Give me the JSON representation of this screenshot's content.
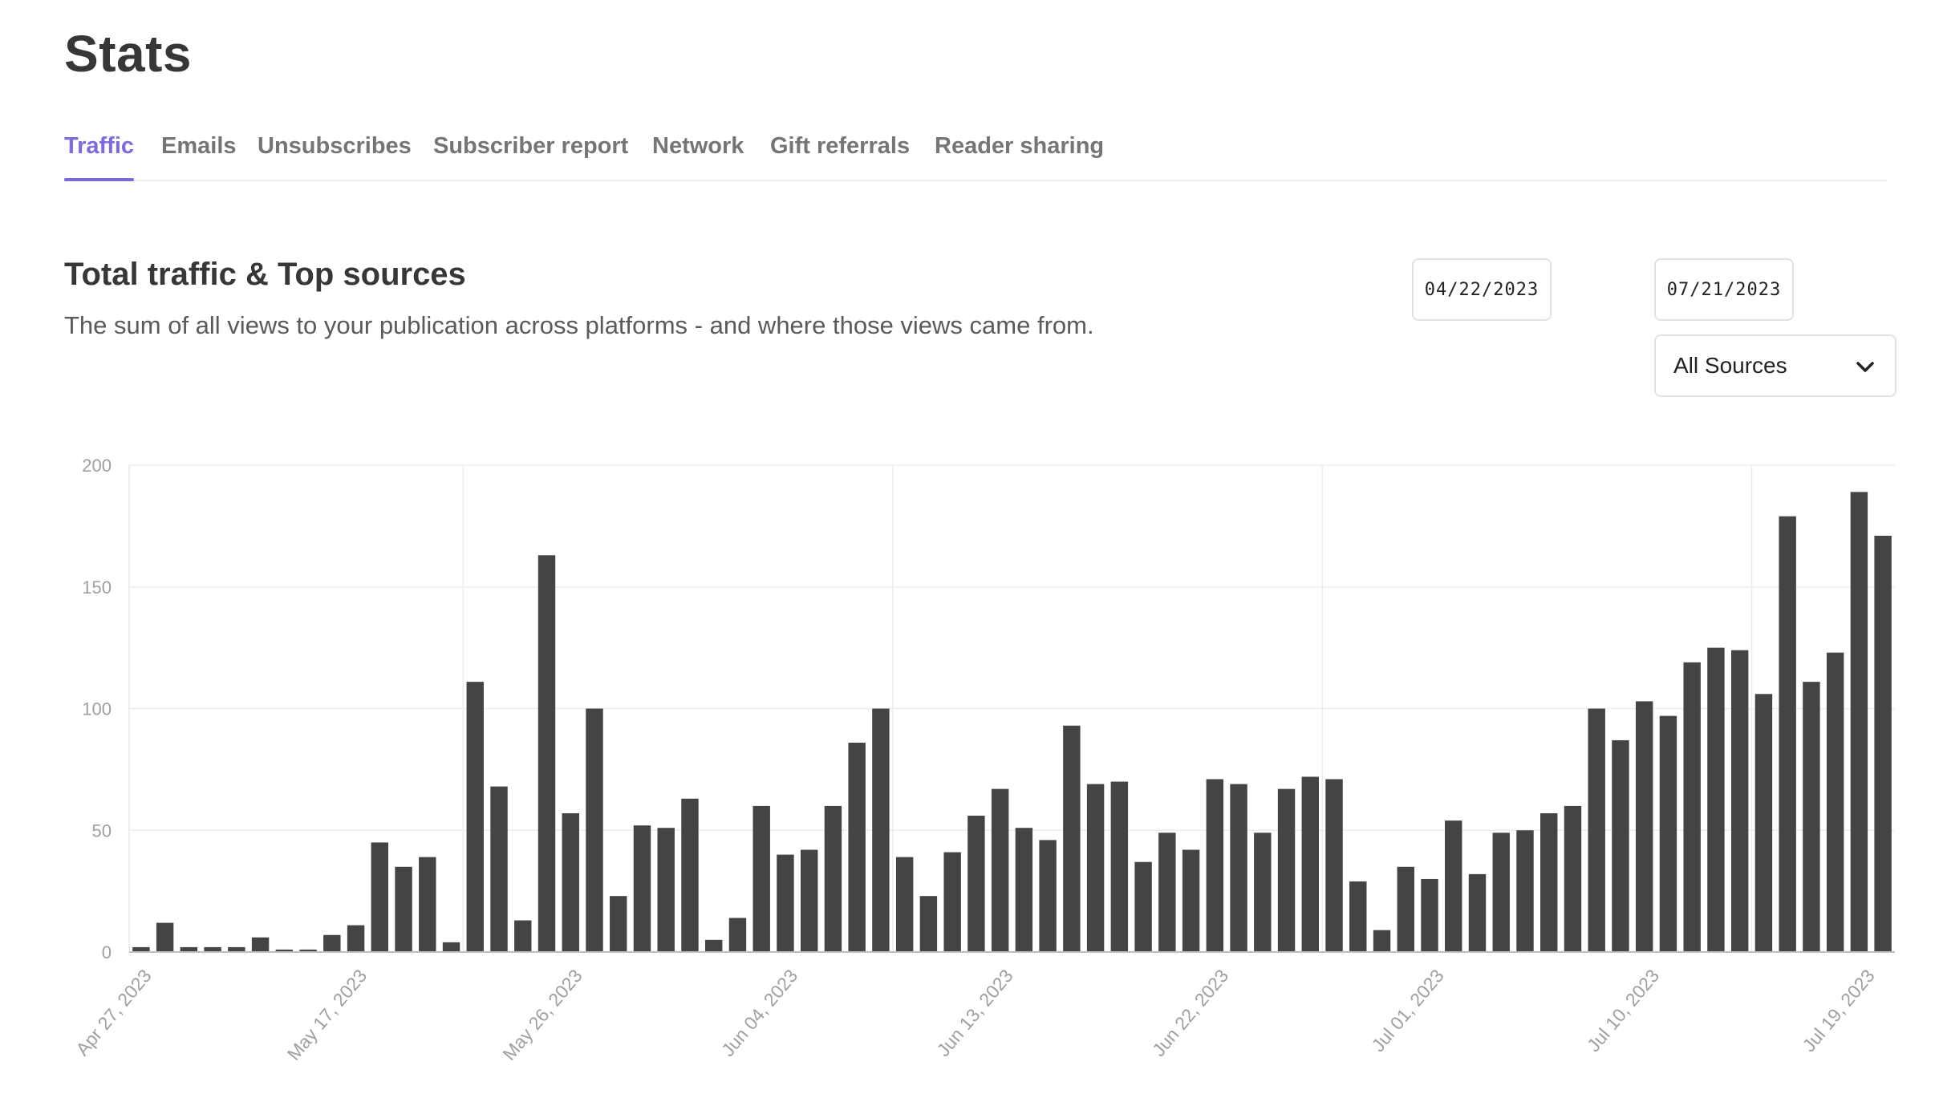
{
  "page": {
    "title": "Stats"
  },
  "tabs": [
    {
      "label": "Traffic",
      "active": true
    },
    {
      "label": "Emails",
      "active": false
    },
    {
      "label": "Unsubscribes",
      "active": false
    },
    {
      "label": "Subscriber report",
      "active": false
    },
    {
      "label": "Network",
      "active": false
    },
    {
      "label": "Gift referrals",
      "active": false
    },
    {
      "label": "Reader sharing",
      "active": false
    }
  ],
  "section": {
    "title": "Total traffic & Top sources",
    "description": "The sum of all views to your publication across platforms - and where those views came from."
  },
  "filters": {
    "start_date": "04/22/2023",
    "end_date": "07/21/2023",
    "source": "All Sources",
    "chevron_icon": "chevron-down-icon"
  },
  "colors": {
    "accent": "#7c6adf",
    "bar": "#444444",
    "axis_label": "#a0a0a0",
    "grid": "#ededed"
  },
  "chart_data": {
    "type": "bar",
    "title": "",
    "xlabel": "",
    "ylabel": "",
    "ylim": [
      0,
      200
    ],
    "yticks": [
      0,
      50,
      100,
      150,
      200
    ],
    "grid": true,
    "x_tick_labels": [
      "Apr 27, 2023",
      "May 17, 2023",
      "May 26, 2023",
      "Jun 04, 2023",
      "Jun 13, 2023",
      "Jun 22, 2023",
      "Jul 01, 2023",
      "Jul 10, 2023",
      "Jul 19, 2023"
    ],
    "values": [
      2,
      12,
      2,
      2,
      2,
      6,
      1,
      1,
      7,
      11,
      45,
      35,
      39,
      4,
      111,
      68,
      13,
      163,
      57,
      100,
      23,
      52,
      51,
      63,
      5,
      14,
      60,
      40,
      42,
      60,
      86,
      100,
      39,
      23,
      41,
      56,
      67,
      51,
      46,
      93,
      69,
      70,
      37,
      49,
      42,
      71,
      69,
      49,
      67,
      72,
      71,
      29,
      9,
      35,
      30,
      54,
      32,
      49,
      50,
      57,
      60,
      100,
      87,
      103,
      97,
      119,
      125,
      124,
      106,
      179,
      111,
      123,
      189,
      171
    ]
  }
}
